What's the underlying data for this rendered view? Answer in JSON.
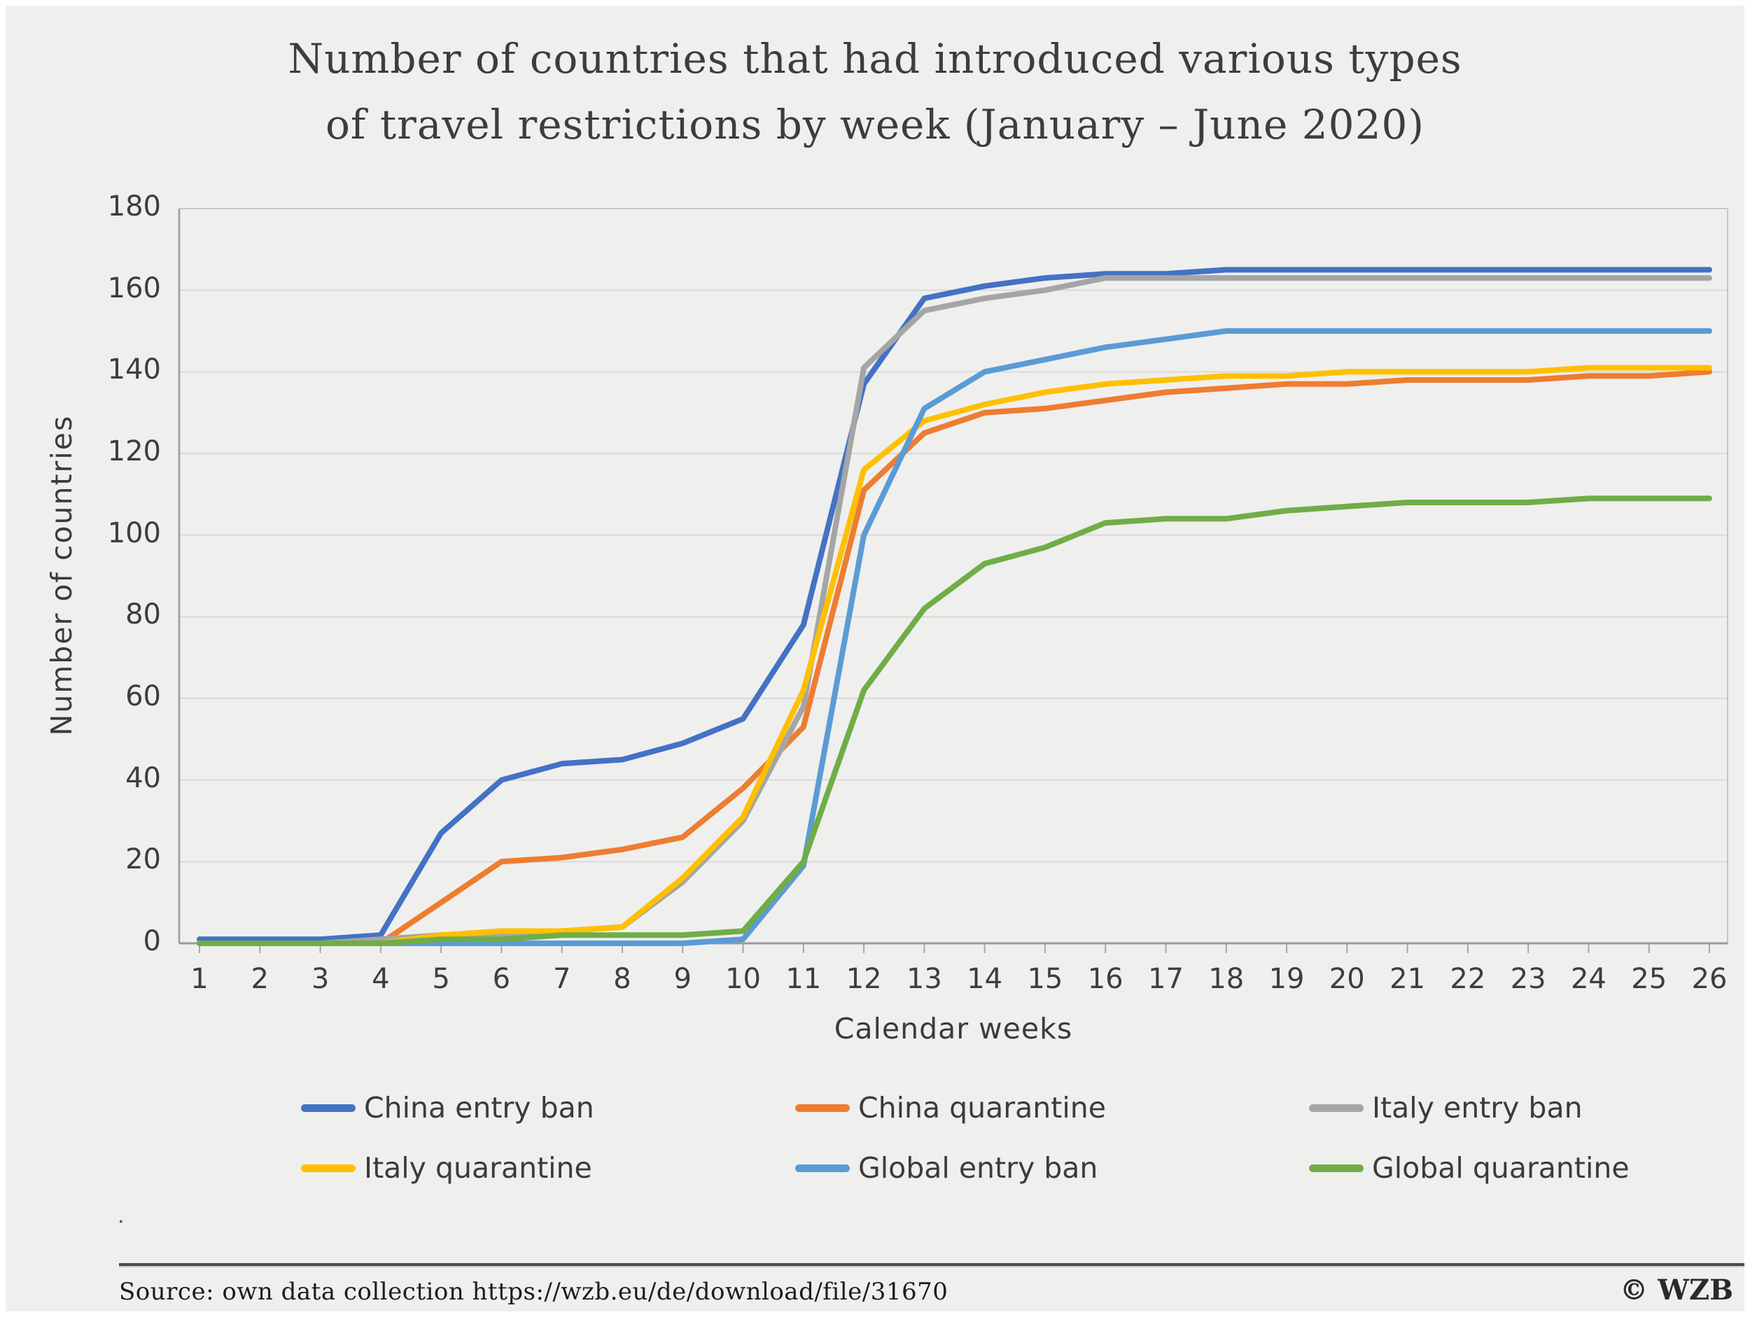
{
  "title": {
    "line1": "Number of countries that had introduced various types",
    "line2": "of travel restrictions by week (January – June 2020)"
  },
  "chart_data": {
    "type": "line",
    "x": [
      1,
      2,
      3,
      4,
      5,
      6,
      7,
      8,
      9,
      10,
      11,
      12,
      13,
      14,
      15,
      16,
      17,
      18,
      19,
      20,
      21,
      22,
      23,
      24,
      25,
      26
    ],
    "xlabel": "Calendar weeks",
    "ylabel": "Number of countries",
    "ylim": [
      0,
      180
    ],
    "ytick_step": 20,
    "grid": true,
    "legend_position": "bottom",
    "series": [
      {
        "name": "China entry ban",
        "color": "#4472C4",
        "values": [
          1,
          1,
          1,
          2,
          27,
          40,
          44,
          45,
          49,
          55,
          78,
          137,
          158,
          161,
          163,
          164,
          164,
          165,
          165,
          165,
          165,
          165,
          165,
          165,
          165,
          165
        ]
      },
      {
        "name": "China quarantine",
        "color": "#ED7D31",
        "values": [
          0,
          0,
          0,
          0,
          10,
          20,
          21,
          23,
          26,
          38,
          53,
          111,
          125,
          130,
          131,
          133,
          135,
          136,
          137,
          137,
          138,
          138,
          138,
          139,
          139,
          140
        ]
      },
      {
        "name": "Italy entry ban",
        "color": "#A5A5A5",
        "values": [
          0,
          0,
          0,
          1,
          2,
          2,
          3,
          4,
          15,
          30,
          58,
          141,
          155,
          158,
          160,
          163,
          163,
          163,
          163,
          163,
          163,
          163,
          163,
          163,
          163,
          163
        ]
      },
      {
        "name": "Italy quarantine",
        "color": "#FFC000",
        "values": [
          0,
          0,
          0,
          0,
          2,
          3,
          3,
          4,
          16,
          31,
          62,
          116,
          128,
          132,
          135,
          137,
          138,
          139,
          139,
          140,
          140,
          140,
          140,
          141,
          141,
          141
        ]
      },
      {
        "name": "Global entry ban",
        "color": "#5B9BD5",
        "values": [
          0,
          0,
          0,
          0,
          0,
          0,
          0,
          0,
          0,
          1,
          19,
          100,
          131,
          140,
          143,
          146,
          148,
          150,
          150,
          150,
          150,
          150,
          150,
          150,
          150,
          150
        ]
      },
      {
        "name": "Global quarantine",
        "color": "#70AD47",
        "values": [
          0,
          0,
          0,
          0,
          1,
          1,
          2,
          2,
          2,
          3,
          20,
          62,
          82,
          93,
          97,
          103,
          104,
          104,
          106,
          107,
          108,
          108,
          108,
          109,
          109,
          109
        ]
      }
    ],
    "axis_colors": {
      "grid": "#d9d9d9",
      "border": "#c6c6c6",
      "axis": "#9a9a9a",
      "tick": "#a6a6a6"
    }
  },
  "footnote_dot": ".",
  "footer": {
    "source": "Source: own data collection https://wzb.eu/de/download/file/31670",
    "copyright": "© WZB"
  }
}
